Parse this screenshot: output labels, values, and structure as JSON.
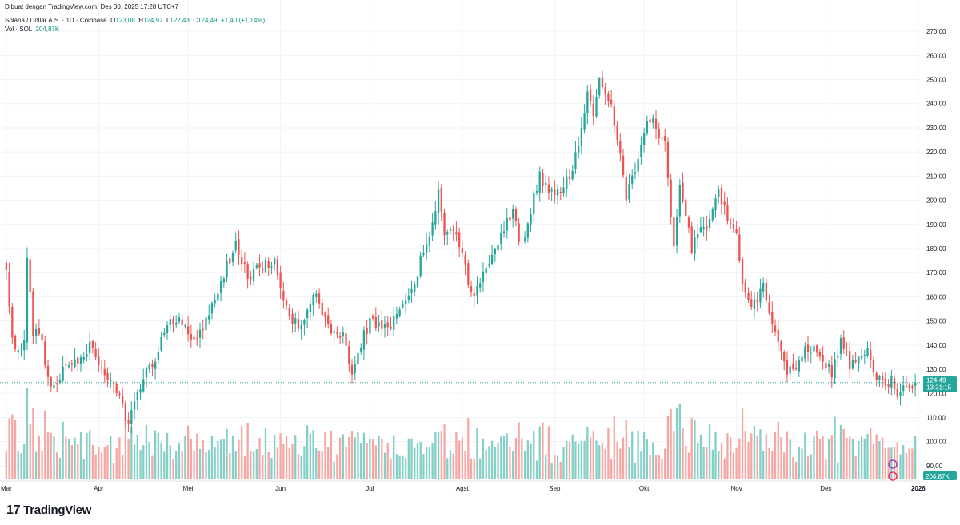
{
  "header": {
    "made_with": "Dibuat dengan TradingView.com, Des 30, 2025 17:28 UTC+7",
    "symbol": "Solana / Dollar A.S. · 1D · Coinbase",
    "o_label": "O",
    "o_value": "123,08",
    "h_label": "H",
    "h_value": "124,97",
    "l_label": "L",
    "l_value": "122,43",
    "c_label": "C",
    "c_value": "124,49",
    "change": "+1,40 (+1,14%)",
    "vol_label": "Vol · SOL",
    "vol_value": "204,87K"
  },
  "colors": {
    "up": "#26a69a",
    "down": "#ef5350",
    "vol_up": "#84cfc6",
    "vol_down": "#f6a6a3",
    "accent": "#089981",
    "text": "#131722",
    "grid": "#f0f3fa"
  },
  "price_badge": {
    "price": "124,49",
    "countdown": "13:31:15"
  },
  "vol_badge": "204,87K",
  "logo": {
    "mark": "17",
    "text": "TradingView"
  },
  "chart_data": {
    "type": "candlestick",
    "title": "Solana / Dollar A.S. · 1D · Coinbase",
    "xlabel": "",
    "ylabel": "",
    "ylim": [
      85,
      275
    ],
    "y_ticks": [
      "270,00",
      "260,00",
      "250,00",
      "240,00",
      "230,00",
      "220,00",
      "210,00",
      "200,00",
      "190,00",
      "180,00",
      "170,00",
      "160,00",
      "150,00",
      "140,00",
      "130,00",
      "120,00",
      "110,00",
      "100,00",
      "90,00"
    ],
    "x_ticks": [
      {
        "label": "Mar",
        "day": 0
      },
      {
        "label": "Apr",
        "day": 31
      },
      {
        "label": "Mei",
        "day": 61
      },
      {
        "label": "Jun",
        "day": 92
      },
      {
        "label": "Jul",
        "day": 122
      },
      {
        "label": "Agst",
        "day": 153
      },
      {
        "label": "Sep",
        "day": 184
      },
      {
        "label": "Okt",
        "day": 214
      },
      {
        "label": "Nov",
        "day": 245
      },
      {
        "label": "Des",
        "day": 275
      },
      {
        "label": "2026",
        "day": 306
      }
    ],
    "close_anchors": [
      [
        0,
        170
      ],
      [
        2,
        143
      ],
      [
        4,
        138
      ],
      [
        6,
        140
      ],
      [
        7,
        178
      ],
      [
        9,
        145
      ],
      [
        11,
        147
      ],
      [
        14,
        127
      ],
      [
        16,
        122
      ],
      [
        19,
        130
      ],
      [
        22,
        131
      ],
      [
        26,
        134
      ],
      [
        28,
        143
      ],
      [
        31,
        130
      ],
      [
        35,
        127
      ],
      [
        39,
        114
      ],
      [
        41,
        107
      ],
      [
        43,
        115
      ],
      [
        46,
        128
      ],
      [
        50,
        134
      ],
      [
        54,
        148
      ],
      [
        58,
        150
      ],
      [
        64,
        142
      ],
      [
        68,
        152
      ],
      [
        74,
        173
      ],
      [
        77,
        181
      ],
      [
        81,
        168
      ],
      [
        85,
        173
      ],
      [
        90,
        175
      ],
      [
        94,
        155
      ],
      [
        98,
        147
      ],
      [
        101,
        153
      ],
      [
        103,
        163
      ],
      [
        106,
        152
      ],
      [
        109,
        147
      ],
      [
        113,
        143
      ],
      [
        116,
        128
      ],
      [
        119,
        141
      ],
      [
        122,
        150
      ],
      [
        126,
        148
      ],
      [
        129,
        148
      ],
      [
        132,
        157
      ],
      [
        136,
        162
      ],
      [
        139,
        175
      ],
      [
        142,
        183
      ],
      [
        145,
        204
      ],
      [
        147,
        188
      ],
      [
        150,
        188
      ],
      [
        153,
        180
      ],
      [
        156,
        160
      ],
      [
        158,
        165
      ],
      [
        161,
        170
      ],
      [
        164,
        181
      ],
      [
        167,
        188
      ],
      [
        170,
        195
      ],
      [
        172,
        185
      ],
      [
        174,
        183
      ],
      [
        177,
        202
      ],
      [
        179,
        210
      ],
      [
        182,
        203
      ],
      [
        186,
        203
      ],
      [
        189,
        210
      ],
      [
        192,
        223
      ],
      [
        195,
        245
      ],
      [
        197,
        237
      ],
      [
        199,
        250
      ],
      [
        201,
        242
      ],
      [
        203,
        238
      ],
      [
        206,
        220
      ],
      [
        208,
        200
      ],
      [
        210,
        210
      ],
      [
        212,
        215
      ],
      [
        215,
        235
      ],
      [
        218,
        230
      ],
      [
        221,
        222
      ],
      [
        224,
        180
      ],
      [
        226,
        206
      ],
      [
        228,
        196
      ],
      [
        230,
        180
      ],
      [
        233,
        190
      ],
      [
        235,
        188
      ],
      [
        237,
        198
      ],
      [
        239,
        203
      ],
      [
        242,
        192
      ],
      [
        245,
        188
      ],
      [
        247,
        165
      ],
      [
        249,
        157
      ],
      [
        252,
        160
      ],
      [
        254,
        165
      ],
      [
        256,
        152
      ],
      [
        259,
        140
      ],
      [
        262,
        130
      ],
      [
        265,
        128
      ],
      [
        268,
        138
      ],
      [
        271,
        140
      ],
      [
        274,
        135
      ],
      [
        277,
        128
      ],
      [
        280,
        143
      ],
      [
        283,
        132
      ],
      [
        286,
        133
      ],
      [
        289,
        138
      ],
      [
        292,
        127
      ],
      [
        294,
        124
      ],
      [
        297,
        125
      ],
      [
        299,
        118
      ],
      [
        302,
        123
      ],
      [
        305,
        124.49
      ]
    ],
    "volume_ylim": [
      0,
      120
    ],
    "last": {
      "open": 123.08,
      "high": 124.97,
      "low": 122.43,
      "close": 124.49,
      "change": "+1,40 (+1,14%)",
      "volume": "204,87K"
    }
  }
}
